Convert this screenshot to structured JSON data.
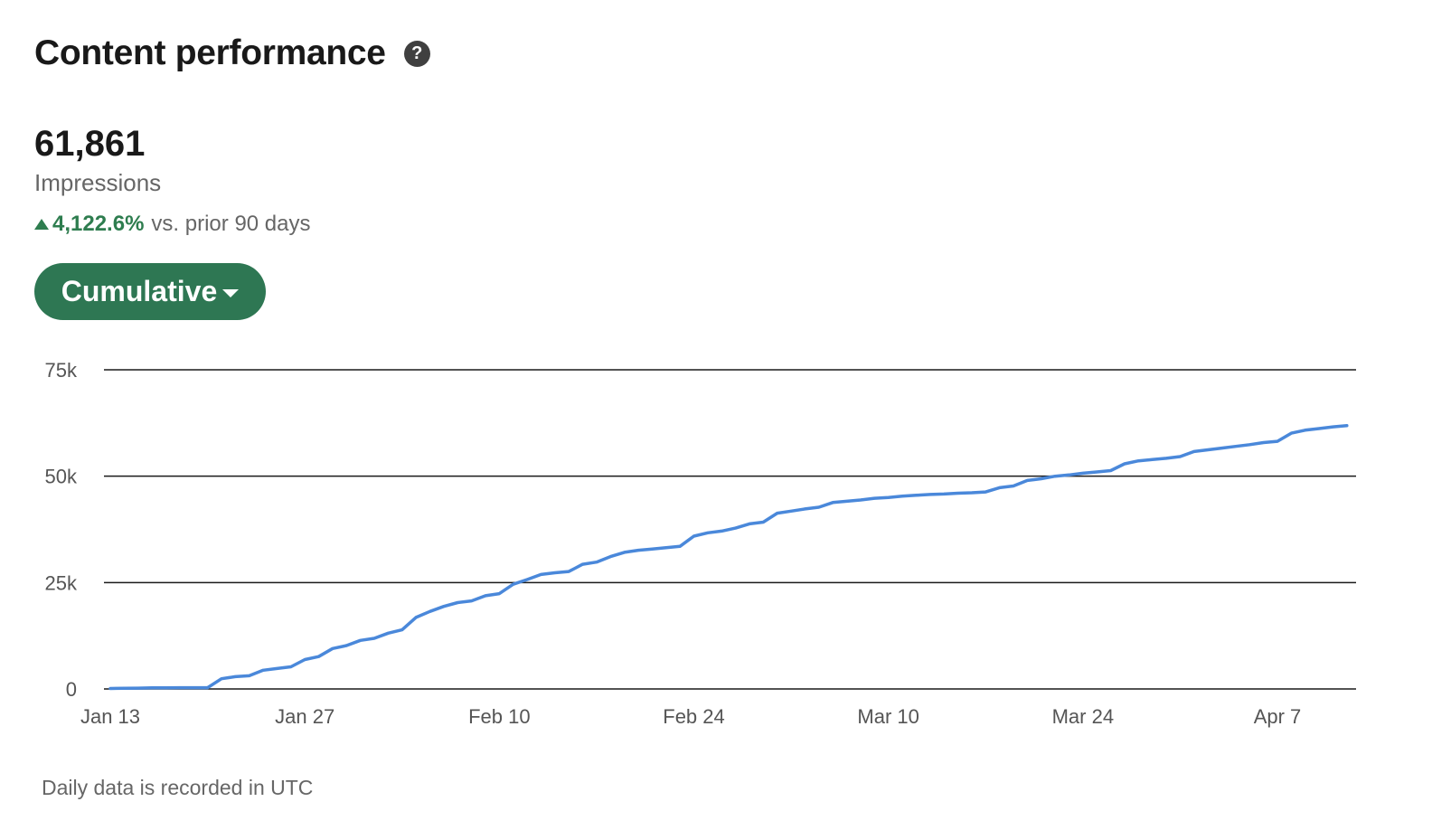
{
  "header": {
    "title": "Content performance",
    "help_icon": "?"
  },
  "metric": {
    "value": "61,861",
    "label": "Impressions",
    "change_pct": "4,122.6%",
    "change_text": "vs. prior 90 days",
    "change_color": "#2e7d4f"
  },
  "view_selector": {
    "label": "Cumulative"
  },
  "footnote": "Daily data is recorded in UTC",
  "chart_data": {
    "type": "line",
    "title": "",
    "xlabel": "",
    "ylabel": "",
    "ylim": [
      0,
      75000
    ],
    "yticks": [
      0,
      25000,
      50000,
      75000
    ],
    "ytick_labels": [
      "0",
      "25k",
      "50k",
      "75k"
    ],
    "x_start": "Jan 13",
    "x_end": "Apr 11",
    "xtick_labels": [
      "Jan 13",
      "Jan 27",
      "Feb 10",
      "Feb 24",
      "Mar 10",
      "Mar 24",
      "Apr 7"
    ],
    "xtick_days": [
      0,
      14,
      28,
      42,
      56,
      70,
      84
    ],
    "grid": true,
    "line_color": "#4a88da",
    "series": [
      {
        "name": "",
        "days": [
          0,
          1,
          2,
          3,
          4,
          5,
          6,
          7,
          8,
          9,
          10,
          11,
          12,
          13,
          14,
          15,
          16,
          17,
          18,
          19,
          20,
          21,
          22,
          23,
          24,
          25,
          26,
          27,
          28,
          29,
          30,
          31,
          32,
          33,
          34,
          35,
          36,
          37,
          38,
          39,
          40,
          41,
          42,
          43,
          44,
          45,
          46,
          47,
          48,
          49,
          50,
          51,
          52,
          53,
          54,
          55,
          56,
          57,
          58,
          59,
          60,
          61,
          62,
          63,
          64,
          65,
          66,
          67,
          68,
          69,
          70,
          71,
          72,
          73,
          74,
          75,
          76,
          77,
          78,
          79,
          80,
          81,
          82,
          83,
          84,
          85,
          86,
          87,
          88,
          89
        ],
        "values": [
          100,
          150,
          200,
          250,
          280,
          300,
          300,
          300,
          2400,
          2900,
          3100,
          4400,
          4800,
          5200,
          6900,
          7600,
          9500,
          10200,
          11400,
          11900,
          13100,
          13900,
          16800,
          18200,
          19400,
          20300,
          20700,
          21900,
          22400,
          24600,
          25700,
          26900,
          27300,
          27600,
          29300,
          29800,
          31100,
          32100,
          32600,
          32900,
          33200,
          33500,
          35900,
          36700,
          37100,
          37800,
          38800,
          39200,
          41300,
          41800,
          42300,
          42700,
          43800,
          44100,
          44400,
          44800,
          45000,
          45300,
          45500,
          45700,
          45800,
          46000,
          46100,
          46300,
          47300,
          47700,
          49000,
          49400,
          50000,
          50300,
          50700,
          51000,
          51300,
          52900,
          53600,
          53900,
          54200,
          54600,
          55800,
          56200,
          56600,
          57000,
          57400,
          57900,
          58200,
          60100,
          60800,
          61200,
          61600,
          61861
        ]
      }
    ]
  }
}
